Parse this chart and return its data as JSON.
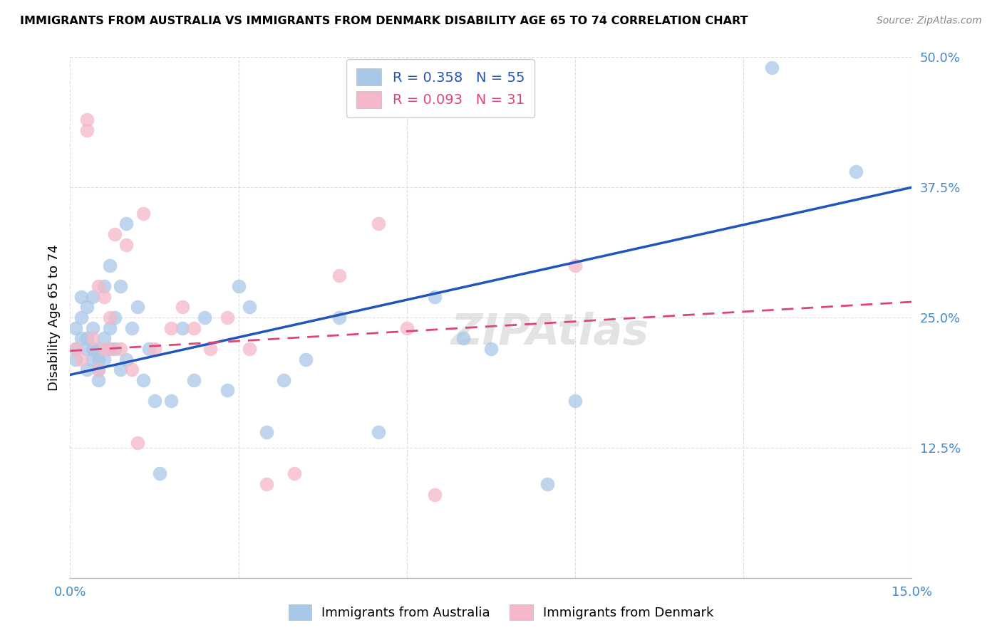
{
  "title": "IMMIGRANTS FROM AUSTRALIA VS IMMIGRANTS FROM DENMARK DISABILITY AGE 65 TO 74 CORRELATION CHART",
  "source": "Source: ZipAtlas.com",
  "ylabel": "Disability Age 65 to 74",
  "xlim": [
    0.0,
    0.15
  ],
  "ylim": [
    0.0,
    0.5
  ],
  "xticks": [
    0.0,
    0.03,
    0.06,
    0.09,
    0.12,
    0.15
  ],
  "xticklabels": [
    "0.0%",
    "",
    "",
    "",
    "",
    "15.0%"
  ],
  "yticks": [
    0.0,
    0.125,
    0.25,
    0.375,
    0.5
  ],
  "yticklabels": [
    "",
    "12.5%",
    "25.0%",
    "37.5%",
    "50.0%"
  ],
  "blue_R": 0.358,
  "blue_N": 55,
  "pink_R": 0.093,
  "pink_N": 31,
  "blue_color": "#a8c8e8",
  "pink_color": "#f4b8c8",
  "blue_line_color": "#2255bb",
  "pink_line_color": "#dd4477",
  "axis_tick_color": "#4488cc",
  "legend_label_blue": "Immigrants from Australia",
  "legend_label_pink": "Immigrants from Denmark",
  "blue_x": [
    0.001,
    0.001,
    0.001,
    0.002,
    0.002,
    0.002,
    0.003,
    0.003,
    0.003,
    0.003,
    0.004,
    0.004,
    0.004,
    0.004,
    0.005,
    0.005,
    0.005,
    0.005,
    0.006,
    0.006,
    0.006,
    0.007,
    0.007,
    0.007,
    0.008,
    0.008,
    0.009,
    0.009,
    0.01,
    0.01,
    0.011,
    0.012,
    0.013,
    0.014,
    0.015,
    0.016,
    0.018,
    0.02,
    0.022,
    0.024,
    0.028,
    0.03,
    0.032,
    0.035,
    0.038,
    0.042,
    0.048,
    0.055,
    0.065,
    0.07,
    0.075,
    0.085,
    0.09,
    0.125,
    0.14
  ],
  "blue_y": [
    0.22,
    0.24,
    0.21,
    0.23,
    0.25,
    0.27,
    0.22,
    0.2,
    0.23,
    0.26,
    0.21,
    0.22,
    0.24,
    0.27,
    0.2,
    0.22,
    0.19,
    0.21,
    0.21,
    0.23,
    0.28,
    0.22,
    0.24,
    0.3,
    0.22,
    0.25,
    0.2,
    0.28,
    0.21,
    0.34,
    0.24,
    0.26,
    0.19,
    0.22,
    0.17,
    0.1,
    0.17,
    0.24,
    0.19,
    0.25,
    0.18,
    0.28,
    0.26,
    0.14,
    0.19,
    0.21,
    0.25,
    0.14,
    0.27,
    0.23,
    0.22,
    0.09,
    0.17,
    0.49,
    0.39
  ],
  "pink_x": [
    0.001,
    0.002,
    0.003,
    0.003,
    0.004,
    0.005,
    0.005,
    0.006,
    0.006,
    0.007,
    0.007,
    0.008,
    0.009,
    0.01,
    0.011,
    0.012,
    0.013,
    0.015,
    0.018,
    0.02,
    0.022,
    0.025,
    0.028,
    0.032,
    0.035,
    0.04,
    0.048,
    0.055,
    0.06,
    0.065,
    0.09
  ],
  "pink_y": [
    0.22,
    0.21,
    0.43,
    0.44,
    0.23,
    0.2,
    0.28,
    0.22,
    0.27,
    0.22,
    0.25,
    0.33,
    0.22,
    0.32,
    0.2,
    0.13,
    0.35,
    0.22,
    0.24,
    0.26,
    0.24,
    0.22,
    0.25,
    0.22,
    0.09,
    0.1,
    0.29,
    0.34,
    0.24,
    0.08,
    0.3
  ],
  "blue_trendline_x": [
    0.0,
    0.15
  ],
  "blue_trendline_y": [
    0.195,
    0.375
  ],
  "pink_trendline_x": [
    0.0,
    0.15
  ],
  "pink_trendline_y": [
    0.218,
    0.265
  ]
}
